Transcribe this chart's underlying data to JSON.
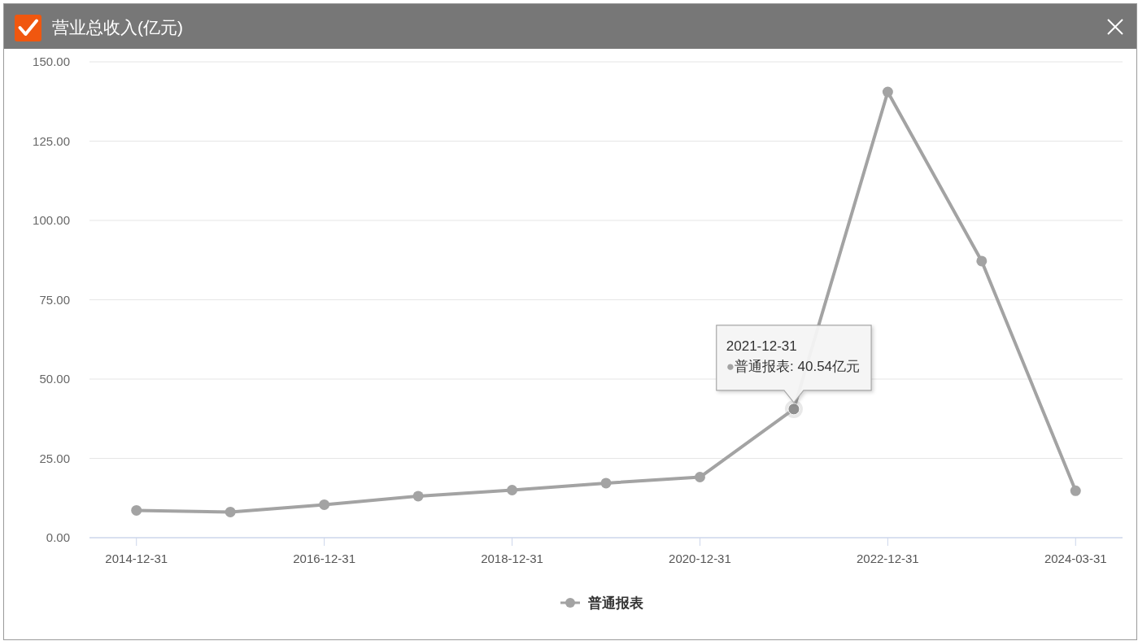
{
  "chart_data": {
    "type": "line",
    "title": "营业总收入(亿元)",
    "categories": [
      "2014-12-31",
      null,
      "2016-12-31",
      null,
      "2018-12-31",
      null,
      "2020-12-31",
      null,
      "2022-12-31",
      null,
      "2024-03-31"
    ],
    "series": [
      {
        "name": "普通报表",
        "color": "#a3a3a3",
        "values": [
          8.6,
          8.1,
          10.4,
          13.1,
          15.0,
          17.2,
          19.1,
          40.54,
          140.5,
          87.2,
          14.8
        ]
      }
    ],
    "ylim": [
      0,
      150
    ],
    "yticks": [
      {
        "value": 0,
        "label": "0.00"
      },
      {
        "value": 25,
        "label": "25.00"
      },
      {
        "value": 50,
        "label": "50.00"
      },
      {
        "value": 75,
        "label": "75.00"
      },
      {
        "value": 100,
        "label": "100.00"
      },
      {
        "value": 125,
        "label": "125.00"
      },
      {
        "value": 150,
        "label": "150.00"
      }
    ],
    "grid": "y",
    "legend": "bottom",
    "marker": "circle",
    "line_style": "solid",
    "annotations": [
      {
        "text": "2021-12-31\n●普通报表: 40.54亿元",
        "y": 40.54
      }
    ]
  }
}
